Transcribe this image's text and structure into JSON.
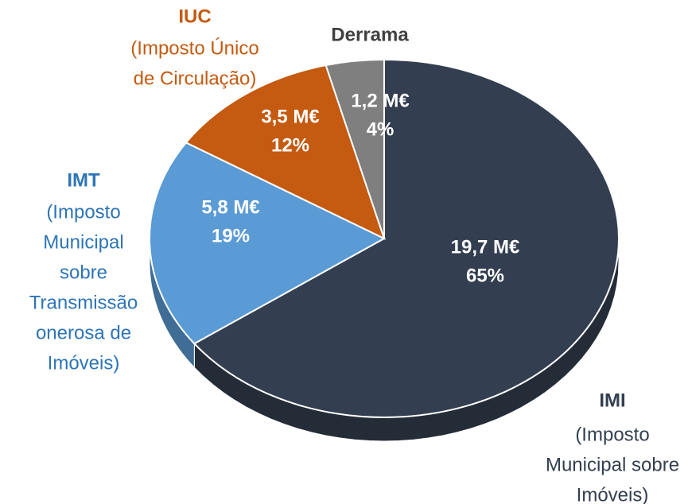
{
  "chart_data": {
    "type": "pie",
    "categories": [
      "IMI",
      "IMT",
      "IUC",
      "Derrama"
    ],
    "descriptions": [
      [
        "(Imposto",
        "Municipal sobre",
        "Imóveis)"
      ],
      [
        "(Imposto",
        "Municipal",
        "sobre",
        "Transmissão",
        "onerosa de",
        "Imóveis)"
      ],
      [
        "(Imposto Único",
        "de Circulação)"
      ],
      null
    ],
    "values": [
      65,
      19,
      12,
      4
    ],
    "value_labels": [
      "65%",
      "19%",
      "12%",
      "4%"
    ],
    "amounts": [
      19.7,
      5.8,
      3.5,
      1.2
    ],
    "amount_labels": [
      "19,7 M€",
      "5,8 M€",
      "3,5 M€",
      "1,2 M€"
    ],
    "colors": [
      "#333f50",
      "#5b9bd5",
      "#c55a11",
      "#7f7f7f"
    ],
    "label_colors": [
      "#333f50",
      "#2e75b6",
      "#c55a11",
      "#404040"
    ]
  }
}
